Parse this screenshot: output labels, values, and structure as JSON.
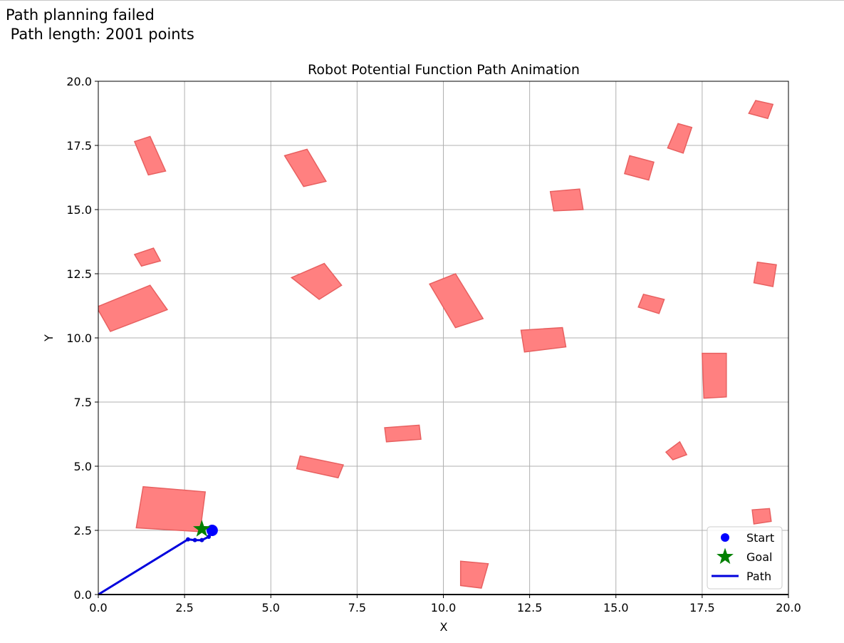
{
  "status": {
    "line1": "Path planning failed",
    "line2": " Path length: 2001 points"
  },
  "chart_data": {
    "type": "scatter",
    "title": "Robot Potential Function Path Animation",
    "xlabel": "X",
    "ylabel": "Y",
    "xlim": [
      0,
      20
    ],
    "ylim": [
      0,
      20
    ],
    "xticks": [
      "0.0",
      "2.5",
      "5.0",
      "7.5",
      "10.0",
      "12.5",
      "15.0",
      "17.5",
      "20.0"
    ],
    "yticks": [
      "0.0",
      "2.5",
      "5.0",
      "7.5",
      "10.0",
      "12.5",
      "15.0",
      "17.5",
      "20.0"
    ],
    "grid": true,
    "legend_placement": "lower-right",
    "colors": {
      "obstacle_fill": "#ff8080",
      "obstacle_edge": "#e86060",
      "start": "#0000ff",
      "goal": "#008000",
      "path": "#0000dd",
      "grid": "#b0b0b0"
    },
    "legend": [
      {
        "label": "Start",
        "marker": "dot",
        "color": "#0000ff"
      },
      {
        "label": "Goal",
        "marker": "star",
        "color": "#008000"
      },
      {
        "label": "Path",
        "marker": "line",
        "color": "#0000dd"
      }
    ],
    "start": [
      3.3,
      2.5
    ],
    "goal": [
      3.0,
      2.55
    ],
    "path": [
      [
        0,
        0
      ],
      [
        2.6,
        2.15
      ],
      [
        2.8,
        2.12
      ],
      [
        3.0,
        2.12
      ],
      [
        3.2,
        2.25
      ],
      [
        3.3,
        2.5
      ]
    ],
    "obstacles": [
      [
        [
          1.3,
          4.2
        ],
        [
          3.1,
          4.0
        ],
        [
          2.95,
          2.45
        ],
        [
          1.1,
          2.6
        ]
      ],
      [
        [
          1.05,
          17.65
        ],
        [
          1.5,
          17.85
        ],
        [
          1.95,
          16.5
        ],
        [
          1.45,
          16.35
        ]
      ],
      [
        [
          5.4,
          17.1
        ],
        [
          6.05,
          17.35
        ],
        [
          6.6,
          16.1
        ],
        [
          5.95,
          15.9
        ]
      ],
      [
        [
          1.05,
          13.25
        ],
        [
          1.6,
          13.5
        ],
        [
          1.8,
          13.0
        ],
        [
          1.25,
          12.8
        ]
      ],
      [
        [
          -0.05,
          11.2
        ],
        [
          1.5,
          12.05
        ],
        [
          2.0,
          11.1
        ],
        [
          0.35,
          10.25
        ]
      ],
      [
        [
          5.6,
          12.35
        ],
        [
          6.55,
          12.9
        ],
        [
          7.05,
          12.05
        ],
        [
          6.4,
          11.5
        ]
      ],
      [
        [
          9.6,
          12.1
        ],
        [
          10.35,
          12.5
        ],
        [
          11.15,
          10.75
        ],
        [
          10.35,
          10.4
        ]
      ],
      [
        [
          13.1,
          15.7
        ],
        [
          13.95,
          15.8
        ],
        [
          14.05,
          15.0
        ],
        [
          13.2,
          14.95
        ]
      ],
      [
        [
          12.25,
          10.3
        ],
        [
          13.45,
          10.4
        ],
        [
          13.55,
          9.65
        ],
        [
          12.35,
          9.45
        ]
      ],
      [
        [
          15.4,
          17.1
        ],
        [
          16.1,
          16.85
        ],
        [
          15.95,
          16.15
        ],
        [
          15.25,
          16.4
        ]
      ],
      [
        [
          16.8,
          18.35
        ],
        [
          17.2,
          18.2
        ],
        [
          16.95,
          17.2
        ],
        [
          16.5,
          17.4
        ]
      ],
      [
        [
          15.8,
          11.7
        ],
        [
          16.4,
          11.5
        ],
        [
          16.25,
          10.95
        ],
        [
          15.65,
          11.2
        ]
      ],
      [
        [
          17.5,
          9.4
        ],
        [
          18.2,
          9.4
        ],
        [
          18.2,
          7.7
        ],
        [
          17.55,
          7.65
        ]
      ],
      [
        [
          19.05,
          19.25
        ],
        [
          19.55,
          19.1
        ],
        [
          19.4,
          18.55
        ],
        [
          18.85,
          18.75
        ]
      ],
      [
        [
          19.1,
          12.95
        ],
        [
          19.65,
          12.85
        ],
        [
          19.55,
          12.0
        ],
        [
          19.0,
          12.15
        ]
      ],
      [
        [
          16.45,
          5.55
        ],
        [
          16.85,
          5.95
        ],
        [
          17.05,
          5.45
        ],
        [
          16.65,
          5.25
        ]
      ],
      [
        [
          18.95,
          3.3
        ],
        [
          19.45,
          3.35
        ],
        [
          19.5,
          2.85
        ],
        [
          19.0,
          2.75
        ]
      ],
      [
        [
          8.3,
          6.5
        ],
        [
          9.3,
          6.6
        ],
        [
          9.35,
          6.05
        ],
        [
          8.35,
          5.95
        ]
      ],
      [
        [
          5.85,
          5.4
        ],
        [
          7.1,
          5.05
        ],
        [
          6.95,
          4.55
        ],
        [
          5.75,
          4.9
        ]
      ],
      [
        [
          10.5,
          1.3
        ],
        [
          11.3,
          1.2
        ],
        [
          11.1,
          0.25
        ],
        [
          10.5,
          0.35
        ]
      ]
    ]
  }
}
